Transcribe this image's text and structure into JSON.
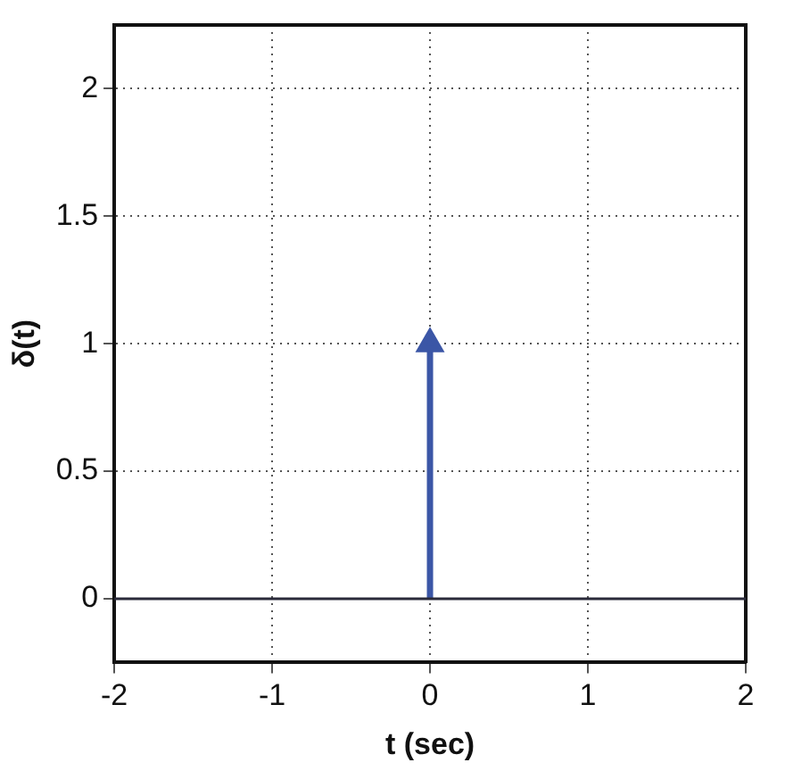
{
  "chart_data": {
    "type": "line",
    "xlabel": "t (sec)",
    "ylabel": "δ(t)",
    "xlim": [
      -2,
      2
    ],
    "xticks": [
      -2,
      -1,
      0,
      1,
      2
    ],
    "ylim": [
      -0.25,
      2.25
    ],
    "yticks": [
      0,
      0.5,
      1,
      1.5,
      2
    ],
    "grid": true,
    "line_style": "solid",
    "series": [
      {
        "x": [
          -2,
          2
        ],
        "values": [
          0,
          0
        ],
        "color": "#2a2a3a"
      },
      {
        "type": "lollipop",
        "x": [
          0
        ],
        "values": [
          1
        ],
        "color": "#3b56a6",
        "marker": "triangle"
      }
    ]
  }
}
